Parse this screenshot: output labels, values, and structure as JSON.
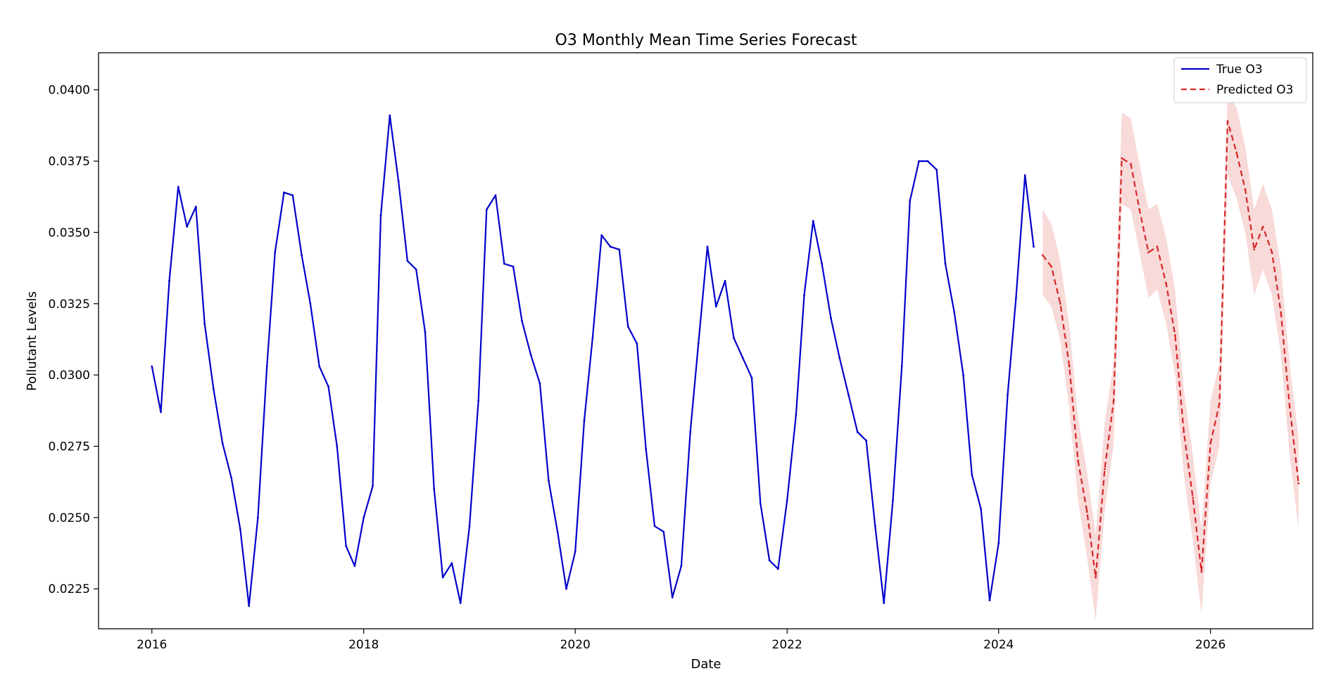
{
  "chart_data": {
    "type": "line",
    "title": "O3 Monthly Mean Time Series Forecast",
    "xlabel": "Date",
    "ylabel": "Pollutant Levels",
    "xlim": [
      "2015-07-01",
      "2026-12-20"
    ],
    "ylim": [
      0.0211,
      0.0413
    ],
    "x_ticks": [
      "2016",
      "2018",
      "2020",
      "2022",
      "2024",
      "2026"
    ],
    "y_ticks": [
      "0.0225",
      "0.0250",
      "0.0275",
      "0.0300",
      "0.0325",
      "0.0350",
      "0.0375",
      "0.0400"
    ],
    "grid": false,
    "legend_position": "top-right",
    "colors": {
      "true": "#0000cc",
      "predicted": "#d62728",
      "band": "#f4c2c0"
    },
    "series": [
      {
        "name": "True O3",
        "style": "solid",
        "start": "2016-01",
        "values": [
          0.0303,
          0.0287,
          0.0333,
          0.0366,
          0.0352,
          0.0359,
          0.0318,
          0.0295,
          0.0276,
          0.0264,
          0.0246,
          0.0219,
          0.025,
          0.0303,
          0.0343,
          0.0364,
          0.0363,
          0.0342,
          0.0325,
          0.0303,
          0.0296,
          0.0275,
          0.024,
          0.0233,
          0.025,
          0.0261,
          0.0356,
          0.0391,
          0.0368,
          0.034,
          0.0337,
          0.0315,
          0.026,
          0.0229,
          0.0234,
          0.022,
          0.0247,
          0.0291,
          0.0358,
          0.0363,
          0.0339,
          0.0338,
          0.0319,
          0.0307,
          0.0297,
          0.0263,
          0.0245,
          0.0225,
          0.0238,
          0.0284,
          0.0313,
          0.0349,
          0.0345,
          0.0344,
          0.0317,
          0.0311,
          0.0274,
          0.0247,
          0.0245,
          0.0222,
          0.0233,
          0.028,
          0.0311,
          0.0345,
          0.0324,
          0.0333,
          0.0313,
          0.0306,
          0.0299,
          0.0255,
          0.0235,
          0.0232,
          0.0256,
          0.0286,
          0.0328,
          0.0354,
          0.0339,
          0.032,
          0.0306,
          0.0293,
          0.028,
          0.0277,
          0.0247,
          0.022,
          0.0256,
          0.0303,
          0.0361,
          0.0375,
          0.0375,
          0.0372,
          0.0339,
          0.0322,
          0.03,
          0.0265,
          0.0253,
          0.0221,
          0.0241,
          0.0293,
          0.0327,
          0.037,
          0.0345
        ]
      },
      {
        "name": "Predicted O3",
        "style": "dashed",
        "start": "2024-06",
        "values": [
          0.0342,
          0.0338,
          0.0325,
          0.0303,
          0.027,
          0.0252,
          0.0229,
          0.0267,
          0.0291,
          0.0376,
          0.0374,
          0.0358,
          0.0343,
          0.0345,
          0.0332,
          0.0314,
          0.028,
          0.0257,
          0.0231,
          0.0276,
          0.029,
          0.0389,
          0.0378,
          0.0365,
          0.0344,
          0.0352,
          0.0343,
          0.0322,
          0.0289,
          0.0262
        ],
        "band_lower": [
          0.0328,
          0.0324,
          0.0312,
          0.0288,
          0.0256,
          0.0236,
          0.0214,
          0.0252,
          0.0276,
          0.036,
          0.0358,
          0.0343,
          0.0327,
          0.033,
          0.0318,
          0.03,
          0.0265,
          0.0242,
          0.0216,
          0.0262,
          0.0275,
          0.037,
          0.0362,
          0.035,
          0.0328,
          0.0337,
          0.0328,
          0.0307,
          0.0272,
          0.0246
        ],
        "band_upper": [
          0.0358,
          0.0353,
          0.034,
          0.0317,
          0.0285,
          0.0266,
          0.0244,
          0.0283,
          0.0305,
          0.0392,
          0.039,
          0.0374,
          0.0358,
          0.036,
          0.0348,
          0.033,
          0.0295,
          0.0272,
          0.0246,
          0.0291,
          0.0304,
          0.0398,
          0.0394,
          0.038,
          0.0358,
          0.0367,
          0.0358,
          0.0338,
          0.0304,
          0.0278
        ]
      }
    ]
  }
}
